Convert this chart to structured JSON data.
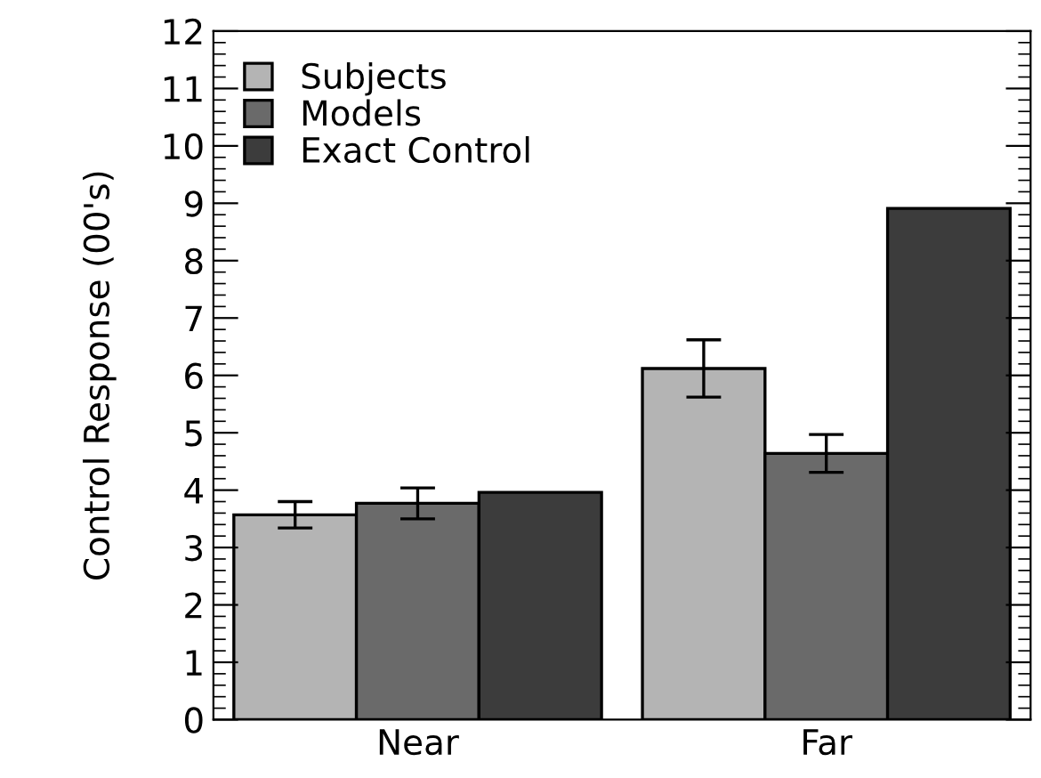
{
  "chart_data": {
    "type": "bar",
    "ylabel": "Control Response (00's)",
    "categories": [
      "Near",
      "Far"
    ],
    "series": [
      {
        "name": "Subjects",
        "color": "#b4b4b4",
        "values": [
          3.57,
          6.12
        ],
        "errors": [
          0.23,
          0.5
        ]
      },
      {
        "name": "Models",
        "color": "#6a6a6a",
        "values": [
          3.77,
          4.64
        ],
        "errors": [
          0.27,
          0.33
        ]
      },
      {
        "name": "Exact Control",
        "color": "#3c3c3c",
        "values": [
          3.96,
          8.91
        ],
        "errors": [
          null,
          null
        ]
      }
    ],
    "ylim": [
      0,
      12
    ],
    "yticks": [
      0,
      1,
      2,
      3,
      4,
      5,
      6,
      7,
      8,
      9,
      10,
      11,
      12
    ],
    "grid": false,
    "legend": "top left"
  }
}
